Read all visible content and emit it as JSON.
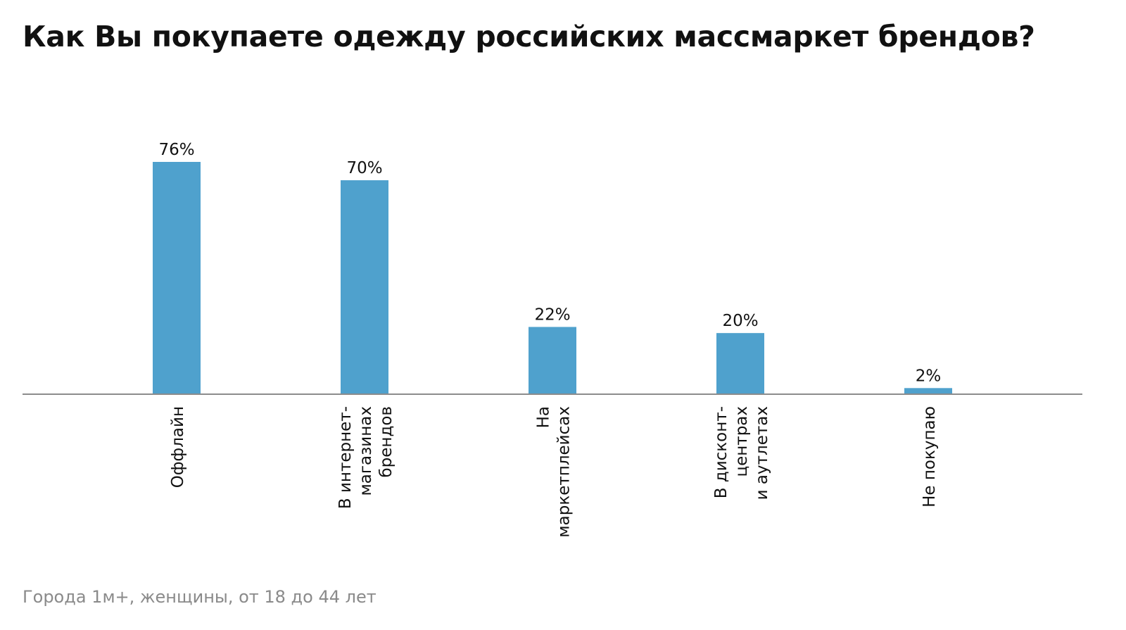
{
  "title": "Как Вы покупаете одежду российских массмаркет брендов?",
  "footnote": "Города 1м+, женщины, от 18 до 44 лет",
  "colors": {
    "bar": "#4fa1cd",
    "axis": "#8c8c8c",
    "text": "#111111",
    "footnote": "#8a8a8a"
  },
  "chart_data": {
    "type": "bar",
    "title": "Как Вы покупаете одежду российских массмаркет брендов?",
    "xlabel": "",
    "ylabel": "",
    "ylim": [
      0,
      100
    ],
    "grid": false,
    "categories": [
      "Оффлайн",
      "В интернет-магазинах брендов",
      "На маркетплейсах",
      "В дисконт-центрах и аутлетах",
      "Не покупаю"
    ],
    "category_label_lines": [
      [
        "Оффлайн"
      ],
      [
        "В интернет-",
        "магазинах",
        "брендов"
      ],
      [
        "На",
        "маркетплейсах"
      ],
      [
        "В дисконт-",
        "центрах",
        "и аутлетах"
      ],
      [
        "Не покупаю"
      ]
    ],
    "values": [
      76,
      70,
      22,
      20,
      2
    ],
    "value_labels": [
      "76%",
      "70%",
      "22%",
      "20%",
      "2%"
    ]
  }
}
